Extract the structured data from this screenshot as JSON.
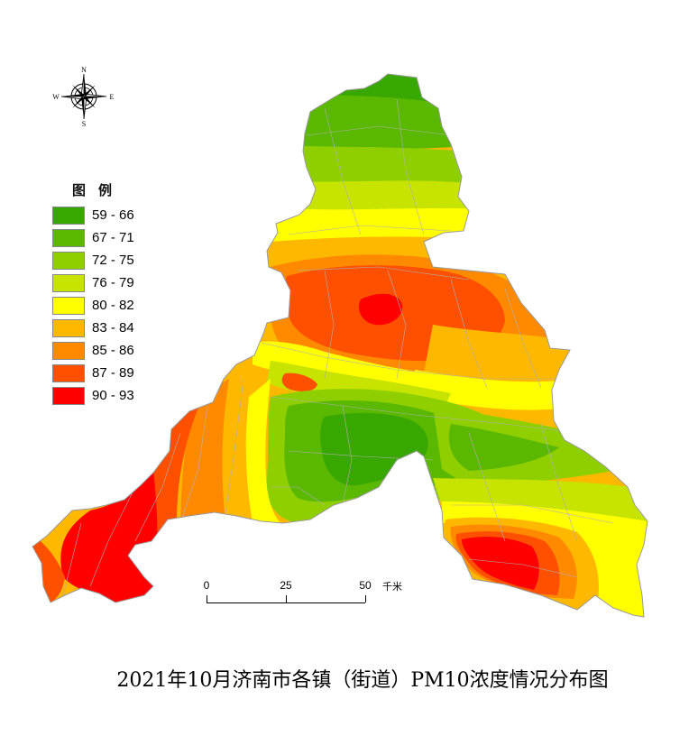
{
  "title": "2021年10月济南市各镇（街道）PM10浓度情况分布图",
  "compass": {
    "north": "N",
    "south": "S",
    "east": "E",
    "west": "W"
  },
  "legend": {
    "title": "图例",
    "items": [
      {
        "label": "59 - 66",
        "color": "#38a800"
      },
      {
        "label": "67 - 71",
        "color": "#5ab800"
      },
      {
        "label": "72 - 75",
        "color": "#8fcf00"
      },
      {
        "label": "76 - 79",
        "color": "#c6e400"
      },
      {
        "label": "80 - 82",
        "color": "#ffff00"
      },
      {
        "label": "83 - 84",
        "color": "#ffb800"
      },
      {
        "label": "85 - 86",
        "color": "#ff8a00"
      },
      {
        "label": "87 - 89",
        "color": "#ff5000"
      },
      {
        "label": "90 - 93",
        "color": "#ff0000"
      }
    ]
  },
  "scalebar": {
    "labels": [
      "0",
      "25",
      "50"
    ],
    "unit": "千米"
  }
}
